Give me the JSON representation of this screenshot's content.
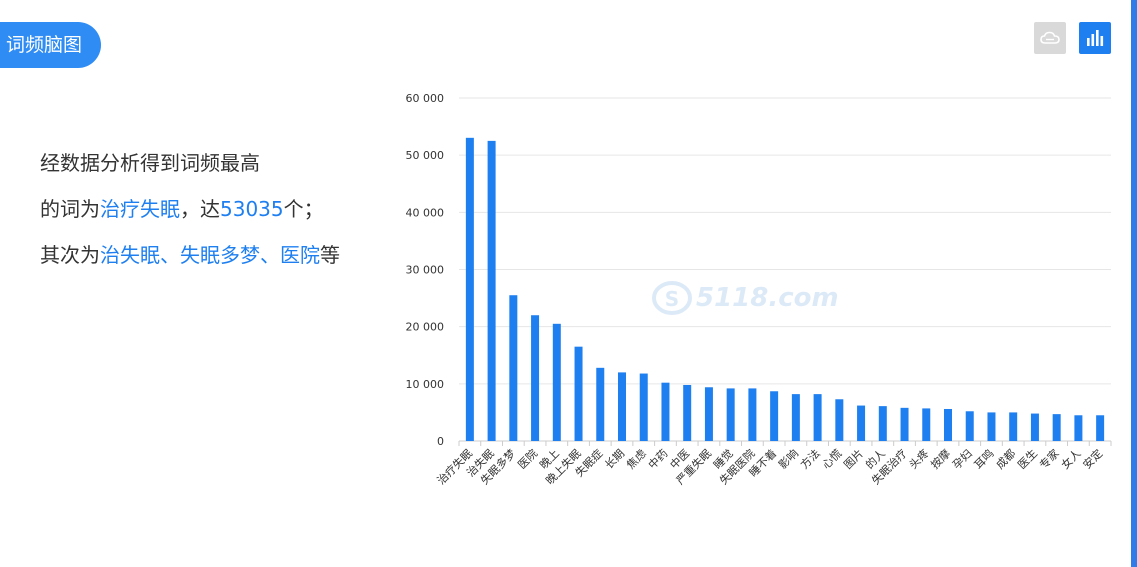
{
  "tab": {
    "label": "词频脑图"
  },
  "toolbar": {
    "wordcloud_icon": "wordcloud-icon",
    "bar_icon": "bar-chart-icon",
    "colors": {
      "inactive": "#d9d9d9",
      "active": "#1e7ff0"
    }
  },
  "summary": {
    "line1": "经数据分析得到词频最高",
    "line2_prefix": "的词为",
    "top_word": "治疗失眠",
    "line2_mid": "，达",
    "top_count": "53035",
    "line2_suffix": "个；",
    "line3_prefix": "其次为",
    "second_word": "治失眠",
    "sep1": "、",
    "third_word": "失眠多梦",
    "sep2": "、",
    "fourth_word": "医院",
    "line3_suffix": "等"
  },
  "watermark": {
    "text": "5118.com"
  },
  "chart_data": {
    "type": "bar",
    "categories": [
      "治疗失眠",
      "治失眠",
      "失眠多梦",
      "医院",
      "晚上",
      "晚上失眠",
      "失眠症",
      "长期",
      "焦虑",
      "中药",
      "中医",
      "严重失眠",
      "睡觉",
      "失眠医院",
      "睡不着",
      "影响",
      "方法",
      "心慌",
      "图片",
      "的人",
      "失眠治疗",
      "头疼",
      "按摩",
      "孕妇",
      "耳鸣",
      "成都",
      "医生",
      "专家",
      "女人",
      "安定"
    ],
    "values": [
      53035,
      52500,
      25500,
      22000,
      20500,
      16500,
      12800,
      12000,
      11800,
      10200,
      9800,
      9400,
      9200,
      9200,
      8700,
      8200,
      8200,
      7300,
      6200,
      6100,
      5800,
      5700,
      5600,
      5200,
      5000,
      5000,
      4800,
      4700,
      4500,
      4500
    ],
    "yticks": [
      "0",
      "10 000",
      "20 000",
      "30 000",
      "40 000",
      "50 000",
      "60 000"
    ],
    "ylim": [
      0,
      60000
    ],
    "grid": true,
    "bar_color": "#1e7ff0"
  }
}
